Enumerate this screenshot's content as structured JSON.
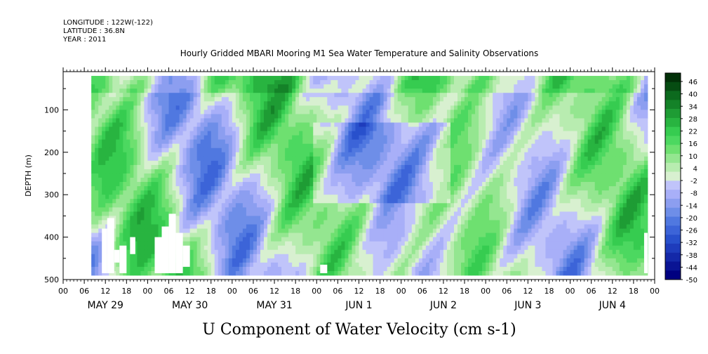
{
  "header": {
    "longitude": "LONGITUDE : 122W(-122)",
    "latitude": "LATITUDE : 36.8N",
    "year": "YEAR : 2011",
    "title": "Hourly Gridded MBARI Mooring M1 Sea Water Temperature and Salinity Observations"
  },
  "colors": {
    "missing": "#ffffff",
    "frame": "#000000"
  },
  "chart_data": {
    "type": "heatmap",
    "title": "U Component of Water Velocity (cm s-1)",
    "ylabel": "DEPTH (m)",
    "xlabel": "",
    "y_axis": {
      "range": [
        10,
        500
      ],
      "inverted": true,
      "ticks": [
        100,
        200,
        300,
        400,
        500
      ]
    },
    "x_axis": {
      "range_hours": [
        0,
        168
      ],
      "hour_ticks": [
        "00",
        "06",
        "12",
        "18",
        "00",
        "06",
        "12",
        "18",
        "00",
        "06",
        "12",
        "18",
        "00",
        "06",
        "12",
        "18",
        "00",
        "06",
        "12",
        "18",
        "00",
        "06",
        "12",
        "18",
        "00",
        "06",
        "12",
        "18",
        "00"
      ],
      "day_labels": [
        "MAY 29",
        "MAY 30",
        "MAY 31",
        "JUN  1",
        "JUN  2",
        "JUN  3",
        "JUN  4"
      ]
    },
    "data_extent": {
      "start_hour": 8,
      "end_hour": 166,
      "min_depth": 20,
      "max_depth": 485
    },
    "colorbar": {
      "levels": [
        -50,
        -44,
        -38,
        -32,
        -26,
        -20,
        -14,
        -8,
        -2,
        4,
        10,
        16,
        22,
        28,
        34,
        40,
        46
      ],
      "labels": [
        "46",
        "40",
        "34",
        "28",
        "22",
        "16",
        "10",
        "4",
        "-2",
        "-8",
        "-14",
        "-20",
        "-26",
        "-32",
        "-38",
        "-44",
        "-50"
      ],
      "colors_low_to_high": [
        "#000080",
        "#0a1494",
        "#1428a8",
        "#1e3cbc",
        "#2850cc",
        "#3c64d8",
        "#5078e0",
        "#6e8ee8",
        "#8c9ef0",
        "#a8aff8",
        "#c0c4fa",
        "#d8f0d0",
        "#b8ecb0",
        "#94e690",
        "#6ee070",
        "#4cd860",
        "#36cc50",
        "#28b440",
        "#1e9c34",
        "#148228",
        "#0c6a1e",
        "#064c12",
        "#023008"
      ]
    },
    "missing_regions": [
      {
        "x_hours": [
          11,
          12.5
        ],
        "depth": [
          380,
          485
        ]
      },
      {
        "x_hours": [
          12.5,
          14.5
        ],
        "depth": [
          355,
          485
        ]
      },
      {
        "x_hours": [
          14.5,
          16
        ],
        "depth": [
          430,
          460
        ]
      },
      {
        "x_hours": [
          16,
          18
        ],
        "depth": [
          420,
          485
        ]
      },
      {
        "x_hours": [
          19,
          20.5
        ],
        "depth": [
          400,
          440
        ]
      },
      {
        "x_hours": [
          26,
          28
        ],
        "depth": [
          400,
          485
        ]
      },
      {
        "x_hours": [
          28,
          30
        ],
        "depth": [
          375,
          485
        ]
      },
      {
        "x_hours": [
          30,
          32
        ],
        "depth": [
          345,
          485
        ]
      },
      {
        "x_hours": [
          32,
          34
        ],
        "depth": [
          390,
          485
        ]
      },
      {
        "x_hours": [
          34,
          36
        ],
        "depth": [
          420,
          470
        ]
      },
      {
        "x_hours": [
          73,
          75
        ],
        "depth": [
          465,
          485
        ]
      },
      {
        "x_hours": [
          165,
          166
        ],
        "depth": [
          390,
          485
        ]
      }
    ]
  }
}
